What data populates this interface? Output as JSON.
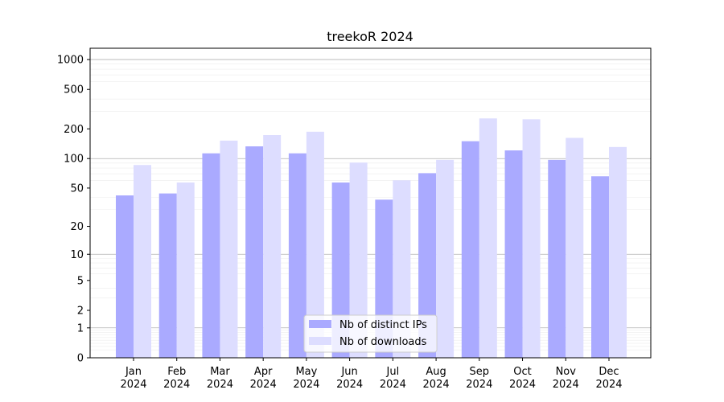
{
  "chart_data": {
    "type": "bar",
    "title": "treekoR 2024",
    "xlabel": "",
    "ylabel": "",
    "yscale": "symlog",
    "ylim": [
      0,
      1300
    ],
    "y_ticks": [
      0,
      1,
      2,
      5,
      10,
      20,
      50,
      100,
      200,
      500,
      1000
    ],
    "grid": "horizontal",
    "legend_position": "bottom-center",
    "categories": [
      [
        "Jan",
        "2024"
      ],
      [
        "Feb",
        "2024"
      ],
      [
        "Mar",
        "2024"
      ],
      [
        "Apr",
        "2024"
      ],
      [
        "May",
        "2024"
      ],
      [
        "Jun",
        "2024"
      ],
      [
        "Jul",
        "2024"
      ],
      [
        "Aug",
        "2024"
      ],
      [
        "Sep",
        "2024"
      ],
      [
        "Oct",
        "2024"
      ],
      [
        "Nov",
        "2024"
      ],
      [
        "Dec",
        "2024"
      ]
    ],
    "series": [
      {
        "name": "Nb of distinct IPs",
        "color": "#aaaaff",
        "values": [
          42,
          44,
          113,
          133,
          113,
          57,
          38,
          71,
          150,
          121,
          97,
          66
        ]
      },
      {
        "name": "Nb of downloads",
        "color": "#ddddff",
        "values": [
          86,
          57,
          152,
          173,
          187,
          91,
          60,
          97,
          255,
          250,
          162,
          131
        ]
      }
    ]
  }
}
